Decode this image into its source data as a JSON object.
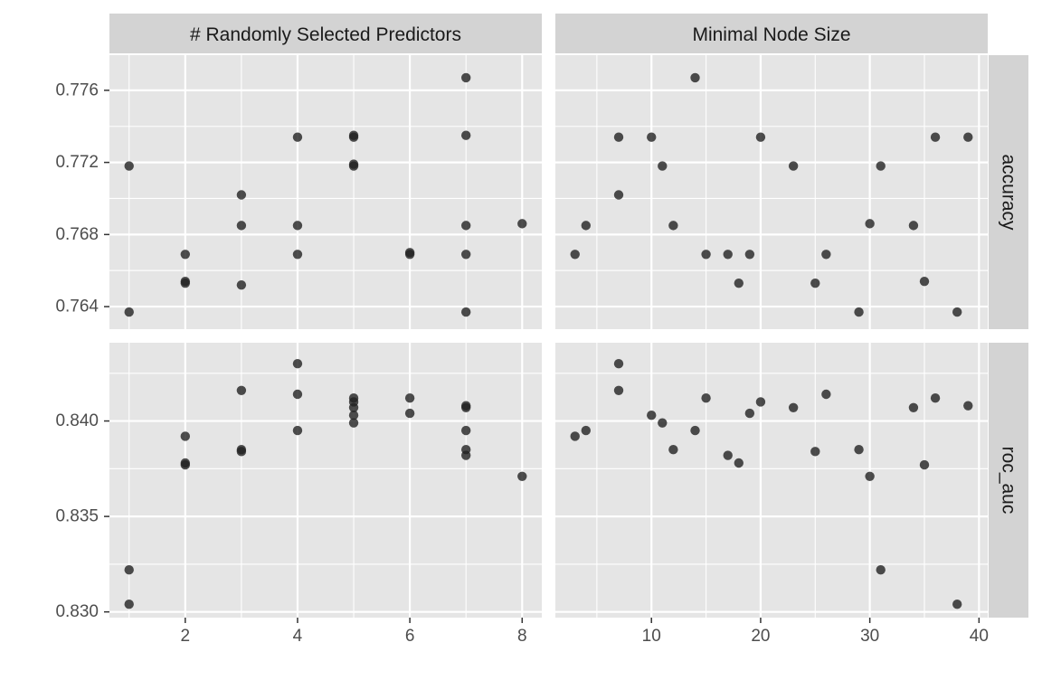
{
  "chart_data": {
    "type": "scatter",
    "layout": "facet_grid",
    "facet_columns": [
      "# Randomly Selected Predictors",
      "Minimal Node Size"
    ],
    "facet_rows": [
      "accuracy",
      "roc_auc"
    ],
    "colors": {
      "panel_bg": "#e5e5e5",
      "strip_bg": "#d3d3d3",
      "grid": "#ffffff",
      "point": "#222222",
      "tick_text": "#4d4d4d",
      "strip_text": "#1a1a1a"
    },
    "x_axes": [
      {
        "label": "",
        "range": [
          0.65,
          8.35
        ],
        "ticks": [
          2,
          4,
          6,
          8
        ],
        "tick_labels": [
          "2",
          "4",
          "6",
          "8"
        ]
      },
      {
        "label": "",
        "range": [
          1.2,
          40.8
        ],
        "ticks": [
          10,
          20,
          30,
          40
        ],
        "tick_labels": [
          "10",
          "20",
          "30",
          "40"
        ]
      }
    ],
    "y_axes": [
      {
        "label": "",
        "range": [
          0.76275,
          0.77795
        ],
        "ticks": [
          0.764,
          0.768,
          0.772,
          0.776
        ],
        "tick_labels": [
          "0.764",
          "0.768",
          "0.772",
          "0.776"
        ]
      },
      {
        "label": "",
        "range": [
          0.8297,
          0.8441
        ],
        "ticks": [
          0.83,
          0.835,
          0.84
        ],
        "tick_labels": [
          "0.830",
          "0.835",
          "0.840"
        ]
      }
    ],
    "panels": [
      {
        "row": 0,
        "col": 0,
        "points": [
          [
            1,
            0.7718
          ],
          [
            1,
            0.7637
          ],
          [
            2,
            0.7669
          ],
          [
            2,
            0.7653
          ],
          [
            2,
            0.7654
          ],
          [
            3,
            0.7702
          ],
          [
            3,
            0.7685
          ],
          [
            3,
            0.7652
          ],
          [
            4,
            0.7734
          ],
          [
            4,
            0.7685
          ],
          [
            4,
            0.7669
          ],
          [
            5,
            0.7734
          ],
          [
            5,
            0.7735
          ],
          [
            5,
            0.7718
          ],
          [
            5,
            0.7719
          ],
          [
            6,
            0.7669
          ],
          [
            6,
            0.767
          ],
          [
            7,
            0.7767
          ],
          [
            7,
            0.7735
          ],
          [
            7,
            0.7685
          ],
          [
            7,
            0.7669
          ],
          [
            7,
            0.7637
          ],
          [
            8,
            0.7686
          ]
        ]
      },
      {
        "row": 0,
        "col": 1,
        "points": [
          [
            3,
            0.7669
          ],
          [
            4,
            0.7685
          ],
          [
            7,
            0.7734
          ],
          [
            7,
            0.7702
          ],
          [
            10,
            0.7734
          ],
          [
            11,
            0.7718
          ],
          [
            12,
            0.7685
          ],
          [
            14,
            0.7767
          ],
          [
            15,
            0.7669
          ],
          [
            17,
            0.7669
          ],
          [
            18,
            0.7653
          ],
          [
            19,
            0.7669
          ],
          [
            20,
            0.7734
          ],
          [
            23,
            0.7718
          ],
          [
            25,
            0.7653
          ],
          [
            26,
            0.7669
          ],
          [
            29,
            0.7637
          ],
          [
            30,
            0.7686
          ],
          [
            31,
            0.7718
          ],
          [
            34,
            0.7685
          ],
          [
            35,
            0.7654
          ],
          [
            36,
            0.7734
          ],
          [
            38,
            0.7637
          ],
          [
            39,
            0.7734
          ]
        ]
      },
      {
        "row": 1,
        "col": 0,
        "points": [
          [
            1,
            0.8322
          ],
          [
            1,
            0.8304
          ],
          [
            2,
            0.8392
          ],
          [
            2,
            0.8378
          ],
          [
            2,
            0.8377
          ],
          [
            3,
            0.8416
          ],
          [
            3,
            0.8385
          ],
          [
            3,
            0.8384
          ],
          [
            4,
            0.843
          ],
          [
            4,
            0.8414
          ],
          [
            4,
            0.8395
          ],
          [
            5,
            0.8412
          ],
          [
            5,
            0.841
          ],
          [
            5,
            0.8407
          ],
          [
            5,
            0.8403
          ],
          [
            5,
            0.8399
          ],
          [
            6,
            0.8412
          ],
          [
            6,
            0.8404
          ],
          [
            7,
            0.8407
          ],
          [
            7,
            0.8408
          ],
          [
            7,
            0.8395
          ],
          [
            7,
            0.8385
          ],
          [
            7,
            0.8382
          ],
          [
            8,
            0.8371
          ]
        ]
      },
      {
        "row": 1,
        "col": 1,
        "points": [
          [
            3,
            0.8392
          ],
          [
            4,
            0.8395
          ],
          [
            7,
            0.843
          ],
          [
            7,
            0.8416
          ],
          [
            10,
            0.8403
          ],
          [
            11,
            0.8399
          ],
          [
            12,
            0.8385
          ],
          [
            14,
            0.8395
          ],
          [
            15,
            0.8412
          ],
          [
            17,
            0.8382
          ],
          [
            18,
            0.8378
          ],
          [
            19,
            0.8404
          ],
          [
            20,
            0.841
          ],
          [
            23,
            0.8407
          ],
          [
            25,
            0.8384
          ],
          [
            26,
            0.8414
          ],
          [
            29,
            0.8385
          ],
          [
            30,
            0.8371
          ],
          [
            31,
            0.8322
          ],
          [
            34,
            0.8407
          ],
          [
            35,
            0.8377
          ],
          [
            36,
            0.8412
          ],
          [
            38,
            0.8304
          ],
          [
            39,
            0.8408
          ]
        ]
      }
    ],
    "grid": true,
    "legend": "none"
  }
}
